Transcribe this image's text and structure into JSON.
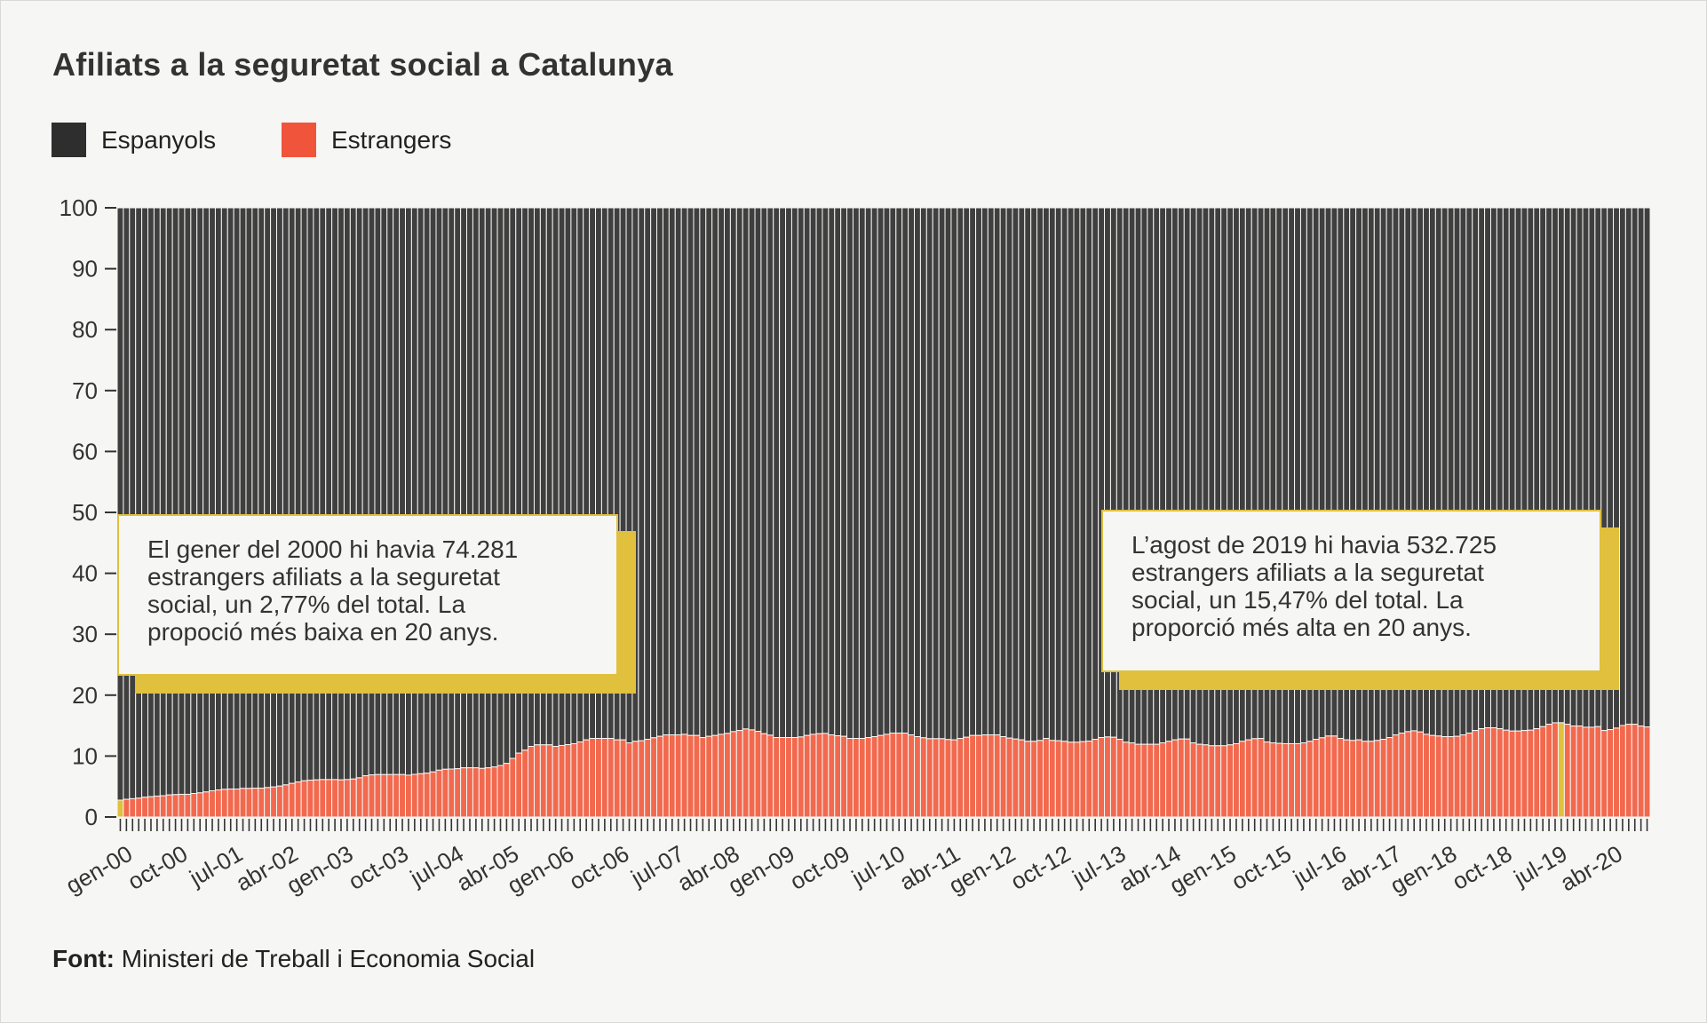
{
  "title": "Afiliats a la seguretat social a Catalunya",
  "legend": [
    {
      "label": "Espanyols",
      "color": "#2e2e2e"
    },
    {
      "label": "Estrangers",
      "color": "#f0553b"
    }
  ],
  "annotations": [
    {
      "lines": [
        "El gener del 2000 hi havia 74.281",
        "estrangers afiliats a la seguretat",
        "social, un 2,77% del total. La",
        "propoció més baixa en 20 anys."
      ]
    },
    {
      "lines": [
        "L’agost de 2019 hi havia 532.725",
        "estrangers afiliats a la seguretat",
        "social, un 15,47% del total. La",
        "proporció més alta en 20 anys."
      ]
    }
  ],
  "source": {
    "label": "Font:",
    "text": "Ministeri de Treball i Economia Social"
  },
  "chart_data": {
    "type": "bar",
    "stacked": true,
    "stacked_percent": true,
    "title": "Afiliats a la seguretat social a Catalunya",
    "xlabel": "",
    "ylabel": "",
    "ylim": [
      0,
      100
    ],
    "y_ticks": [
      "0",
      "10",
      "20",
      "30",
      "40",
      "50",
      "60",
      "70",
      "80",
      "90",
      "100"
    ],
    "grid": false,
    "legend_position": "top-left",
    "colors": {
      "espanyols": "#3f3f3f",
      "estrangers": "#f2694e",
      "highlight": "#e0c03c"
    },
    "highlighted": [
      "gen-00",
      "ago-19"
    ],
    "x_tick_labels": [
      "gen-00",
      "oct-00",
      "jul-01",
      "abr-02",
      "gen-03",
      "oct-03",
      "jul-04",
      "abr-05",
      "gen-06",
      "oct-06",
      "jul-07",
      "abr-08",
      "gen-09",
      "oct-09",
      "jul-10",
      "abr-11",
      "gen-12",
      "oct-12",
      "jul-13",
      "abr-14",
      "gen-15",
      "oct-15",
      "jul-16",
      "abr-17",
      "gen-18",
      "oct-18",
      "jul-19",
      "abr-20"
    ],
    "categories": [
      "gen-00",
      "feb-00",
      "mar-00",
      "abr-00",
      "mai-00",
      "jun-00",
      "jul-00",
      "ago-00",
      "set-00",
      "oct-00",
      "nov-00",
      "des-00",
      "gen-01",
      "feb-01",
      "mar-01",
      "abr-01",
      "mai-01",
      "jun-01",
      "jul-01",
      "ago-01",
      "set-01",
      "oct-01",
      "nov-01",
      "des-01",
      "gen-02",
      "feb-02",
      "mar-02",
      "abr-02",
      "mai-02",
      "jun-02",
      "jul-02",
      "ago-02",
      "set-02",
      "oct-02",
      "nov-02",
      "des-02",
      "gen-03",
      "feb-03",
      "mar-03",
      "abr-03",
      "mai-03",
      "jun-03",
      "jul-03",
      "ago-03",
      "set-03",
      "oct-03",
      "nov-03",
      "des-03",
      "gen-04",
      "feb-04",
      "mar-04",
      "abr-04",
      "mai-04",
      "jun-04",
      "jul-04",
      "ago-04",
      "set-04",
      "oct-04",
      "nov-04",
      "des-04",
      "gen-05",
      "feb-05",
      "mar-05",
      "abr-05",
      "mai-05",
      "jun-05",
      "jul-05",
      "ago-05",
      "set-05",
      "oct-05",
      "nov-05",
      "des-05",
      "gen-06",
      "feb-06",
      "mar-06",
      "abr-06",
      "mai-06",
      "jun-06",
      "jul-06",
      "ago-06",
      "set-06",
      "oct-06",
      "nov-06",
      "des-06",
      "gen-07",
      "feb-07",
      "mar-07",
      "abr-07",
      "mai-07",
      "jun-07",
      "jul-07",
      "ago-07",
      "set-07",
      "oct-07",
      "nov-07",
      "des-07",
      "gen-08",
      "feb-08",
      "mar-08",
      "abr-08",
      "mai-08",
      "jun-08",
      "jul-08",
      "ago-08",
      "set-08",
      "oct-08",
      "nov-08",
      "des-08",
      "gen-09",
      "feb-09",
      "mar-09",
      "abr-09",
      "mai-09",
      "jun-09",
      "jul-09",
      "ago-09",
      "set-09",
      "oct-09",
      "nov-09",
      "des-09",
      "gen-10",
      "feb-10",
      "mar-10",
      "abr-10",
      "mai-10",
      "jun-10",
      "jul-10",
      "ago-10",
      "set-10",
      "oct-10",
      "nov-10",
      "des-10",
      "gen-11",
      "feb-11",
      "mar-11",
      "abr-11",
      "mai-11",
      "jun-11",
      "jul-11",
      "ago-11",
      "set-11",
      "oct-11",
      "nov-11",
      "des-11",
      "gen-12",
      "feb-12",
      "mar-12",
      "abr-12",
      "mai-12",
      "jun-12",
      "jul-12",
      "ago-12",
      "set-12",
      "oct-12",
      "nov-12",
      "des-12",
      "gen-13",
      "feb-13",
      "mar-13",
      "abr-13",
      "mai-13",
      "jun-13",
      "jul-13",
      "ago-13",
      "set-13",
      "oct-13",
      "nov-13",
      "des-13",
      "gen-14",
      "feb-14",
      "mar-14",
      "abr-14",
      "mai-14",
      "jun-14",
      "jul-14",
      "ago-14",
      "set-14",
      "oct-14",
      "nov-14",
      "des-14",
      "gen-15",
      "feb-15",
      "mar-15",
      "abr-15",
      "mai-15",
      "jun-15",
      "jul-15",
      "ago-15",
      "set-15",
      "oct-15",
      "nov-15",
      "des-15",
      "gen-16",
      "feb-16",
      "mar-16",
      "abr-16",
      "mai-16",
      "jun-16",
      "jul-16",
      "ago-16",
      "set-16",
      "oct-16",
      "nov-16",
      "des-16",
      "gen-17",
      "feb-17",
      "mar-17",
      "abr-17",
      "mai-17",
      "jun-17",
      "jul-17",
      "ago-17",
      "set-17",
      "oct-17",
      "nov-17",
      "des-17",
      "gen-18",
      "feb-18",
      "mar-18",
      "abr-18",
      "mai-18",
      "jun-18",
      "jul-18",
      "ago-18",
      "set-18",
      "oct-18",
      "nov-18",
      "des-18",
      "gen-19",
      "feb-19",
      "mar-19",
      "abr-19",
      "mai-19",
      "jun-19",
      "jul-19",
      "ago-19",
      "set-19",
      "oct-19",
      "nov-19",
      "des-19",
      "gen-20",
      "feb-20",
      "mar-20",
      "abr-20",
      "mai-20",
      "jun-20",
      "jul-20",
      "ago-20",
      "set-20",
      "oct-20"
    ],
    "series": [
      {
        "name": "Estrangers",
        "values": [
          2.77,
          2.9,
          3.0,
          3.09,
          3.24,
          3.33,
          3.43,
          3.48,
          3.62,
          3.67,
          3.72,
          3.72,
          3.86,
          3.96,
          4.11,
          4.3,
          4.44,
          4.54,
          4.59,
          4.59,
          4.69,
          4.69,
          4.73,
          4.73,
          4.83,
          4.93,
          5.07,
          5.27,
          5.51,
          5.75,
          5.94,
          6.04,
          6.09,
          6.14,
          6.14,
          6.14,
          6.09,
          6.14,
          6.23,
          6.43,
          6.76,
          6.91,
          6.96,
          6.96,
          6.96,
          6.96,
          6.96,
          6.86,
          7.0,
          7.1,
          7.2,
          7.39,
          7.68,
          7.83,
          7.87,
          7.92,
          8.07,
          8.07,
          8.07,
          7.97,
          8.07,
          8.21,
          8.45,
          8.79,
          9.61,
          10.48,
          10.97,
          11.59,
          11.84,
          11.84,
          11.84,
          11.59,
          11.74,
          11.88,
          12.03,
          12.32,
          12.66,
          12.9,
          12.9,
          12.9,
          12.9,
          12.66,
          12.66,
          12.17,
          12.42,
          12.51,
          12.75,
          13.0,
          13.24,
          13.48,
          13.48,
          13.48,
          13.57,
          13.38,
          13.38,
          13.04,
          13.24,
          13.38,
          13.57,
          13.72,
          14.01,
          14.2,
          14.45,
          14.3,
          14.06,
          13.67,
          13.43,
          13.04,
          13.04,
          13.04,
          13.04,
          13.14,
          13.38,
          13.57,
          13.67,
          13.72,
          13.48,
          13.33,
          13.24,
          12.9,
          12.9,
          12.9,
          13.04,
          13.19,
          13.38,
          13.57,
          13.77,
          13.77,
          13.77,
          13.48,
          13.19,
          13.0,
          12.85,
          12.85,
          12.85,
          12.71,
          12.66,
          12.9,
          13.09,
          13.38,
          13.38,
          13.48,
          13.48,
          13.48,
          13.19,
          12.95,
          12.8,
          12.66,
          12.42,
          12.42,
          12.56,
          12.9,
          12.56,
          12.51,
          12.42,
          12.27,
          12.27,
          12.37,
          12.46,
          12.75,
          13.04,
          13.14,
          13.09,
          12.75,
          12.27,
          12.17,
          11.93,
          11.93,
          11.93,
          11.93,
          12.17,
          12.42,
          12.66,
          12.8,
          12.8,
          12.17,
          11.93,
          11.84,
          11.69,
          11.69,
          11.69,
          11.84,
          12.03,
          12.42,
          12.66,
          12.85,
          12.9,
          12.32,
          12.17,
          12.08,
          12.03,
          12.03,
          12.03,
          12.17,
          12.42,
          12.75,
          13.0,
          13.29,
          13.29,
          12.9,
          12.66,
          12.56,
          12.66,
          12.42,
          12.42,
          12.56,
          12.75,
          13.04,
          13.48,
          13.77,
          14.01,
          14.15,
          13.96,
          13.57,
          13.38,
          13.29,
          13.19,
          13.19,
          13.24,
          13.48,
          13.77,
          14.2,
          14.49,
          14.64,
          14.64,
          14.49,
          14.25,
          14.11,
          14.11,
          14.2,
          14.25,
          14.49,
          14.83,
          15.22,
          15.46,
          15.47,
          15.22,
          14.93,
          14.93,
          14.73,
          14.73,
          14.83,
          14.2,
          14.35,
          14.59,
          15.02,
          15.22,
          15.22,
          14.93,
          14.78
        ]
      },
      {
        "name": "Espanyols",
        "values_rule": "100 - Estrangers"
      }
    ]
  }
}
